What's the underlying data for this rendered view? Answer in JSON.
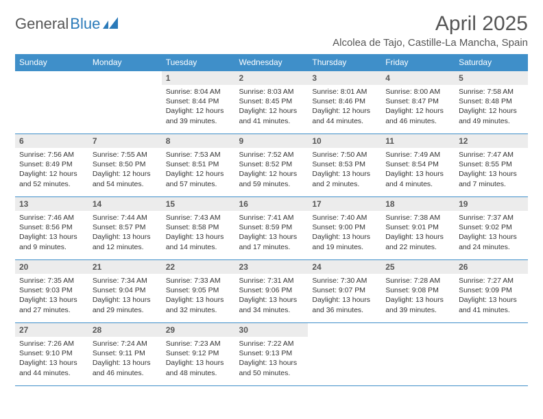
{
  "logo": {
    "part1": "General",
    "part2": "Blue"
  },
  "title": "April 2025",
  "location": "Alcolea de Tajo, Castille-La Mancha, Spain",
  "colors": {
    "header_bg": "#3f8fc9",
    "header_text": "#ffffff",
    "daynum_bg": "#ececec",
    "border": "#3f8fc9",
    "text": "#333333",
    "title_text": "#555555"
  },
  "day_headers": [
    "Sunday",
    "Monday",
    "Tuesday",
    "Wednesday",
    "Thursday",
    "Friday",
    "Saturday"
  ],
  "weeks": [
    [
      null,
      null,
      {
        "n": "1",
        "sr": "8:04 AM",
        "ss": "8:44 PM",
        "dl": "12 hours and 39 minutes."
      },
      {
        "n": "2",
        "sr": "8:03 AM",
        "ss": "8:45 PM",
        "dl": "12 hours and 41 minutes."
      },
      {
        "n": "3",
        "sr": "8:01 AM",
        "ss": "8:46 PM",
        "dl": "12 hours and 44 minutes."
      },
      {
        "n": "4",
        "sr": "8:00 AM",
        "ss": "8:47 PM",
        "dl": "12 hours and 46 minutes."
      },
      {
        "n": "5",
        "sr": "7:58 AM",
        "ss": "8:48 PM",
        "dl": "12 hours and 49 minutes."
      }
    ],
    [
      {
        "n": "6",
        "sr": "7:56 AM",
        "ss": "8:49 PM",
        "dl": "12 hours and 52 minutes."
      },
      {
        "n": "7",
        "sr": "7:55 AM",
        "ss": "8:50 PM",
        "dl": "12 hours and 54 minutes."
      },
      {
        "n": "8",
        "sr": "7:53 AM",
        "ss": "8:51 PM",
        "dl": "12 hours and 57 minutes."
      },
      {
        "n": "9",
        "sr": "7:52 AM",
        "ss": "8:52 PM",
        "dl": "12 hours and 59 minutes."
      },
      {
        "n": "10",
        "sr": "7:50 AM",
        "ss": "8:53 PM",
        "dl": "13 hours and 2 minutes."
      },
      {
        "n": "11",
        "sr": "7:49 AM",
        "ss": "8:54 PM",
        "dl": "13 hours and 4 minutes."
      },
      {
        "n": "12",
        "sr": "7:47 AM",
        "ss": "8:55 PM",
        "dl": "13 hours and 7 minutes."
      }
    ],
    [
      {
        "n": "13",
        "sr": "7:46 AM",
        "ss": "8:56 PM",
        "dl": "13 hours and 9 minutes."
      },
      {
        "n": "14",
        "sr": "7:44 AM",
        "ss": "8:57 PM",
        "dl": "13 hours and 12 minutes."
      },
      {
        "n": "15",
        "sr": "7:43 AM",
        "ss": "8:58 PM",
        "dl": "13 hours and 14 minutes."
      },
      {
        "n": "16",
        "sr": "7:41 AM",
        "ss": "8:59 PM",
        "dl": "13 hours and 17 minutes."
      },
      {
        "n": "17",
        "sr": "7:40 AM",
        "ss": "9:00 PM",
        "dl": "13 hours and 19 minutes."
      },
      {
        "n": "18",
        "sr": "7:38 AM",
        "ss": "9:01 PM",
        "dl": "13 hours and 22 minutes."
      },
      {
        "n": "19",
        "sr": "7:37 AM",
        "ss": "9:02 PM",
        "dl": "13 hours and 24 minutes."
      }
    ],
    [
      {
        "n": "20",
        "sr": "7:35 AM",
        "ss": "9:03 PM",
        "dl": "13 hours and 27 minutes."
      },
      {
        "n": "21",
        "sr": "7:34 AM",
        "ss": "9:04 PM",
        "dl": "13 hours and 29 minutes."
      },
      {
        "n": "22",
        "sr": "7:33 AM",
        "ss": "9:05 PM",
        "dl": "13 hours and 32 minutes."
      },
      {
        "n": "23",
        "sr": "7:31 AM",
        "ss": "9:06 PM",
        "dl": "13 hours and 34 minutes."
      },
      {
        "n": "24",
        "sr": "7:30 AM",
        "ss": "9:07 PM",
        "dl": "13 hours and 36 minutes."
      },
      {
        "n": "25",
        "sr": "7:28 AM",
        "ss": "9:08 PM",
        "dl": "13 hours and 39 minutes."
      },
      {
        "n": "26",
        "sr": "7:27 AM",
        "ss": "9:09 PM",
        "dl": "13 hours and 41 minutes."
      }
    ],
    [
      {
        "n": "27",
        "sr": "7:26 AM",
        "ss": "9:10 PM",
        "dl": "13 hours and 44 minutes."
      },
      {
        "n": "28",
        "sr": "7:24 AM",
        "ss": "9:11 PM",
        "dl": "13 hours and 46 minutes."
      },
      {
        "n": "29",
        "sr": "7:23 AM",
        "ss": "9:12 PM",
        "dl": "13 hours and 48 minutes."
      },
      {
        "n": "30",
        "sr": "7:22 AM",
        "ss": "9:13 PM",
        "dl": "13 hours and 50 minutes."
      },
      null,
      null,
      null
    ]
  ],
  "labels": {
    "sunrise": "Sunrise: ",
    "sunset": "Sunset: ",
    "daylight": "Daylight: "
  }
}
